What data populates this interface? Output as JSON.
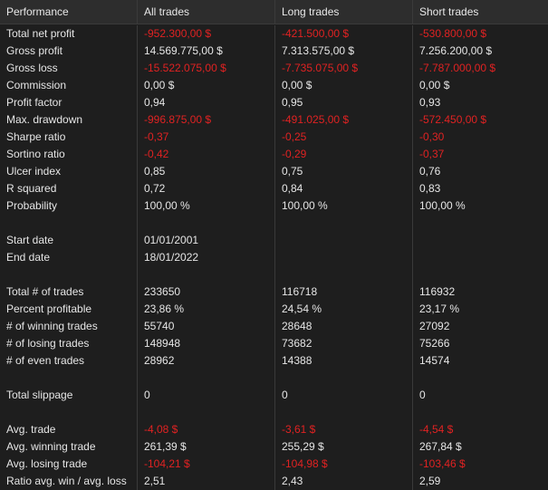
{
  "columns": [
    "Performance",
    "All trades",
    "Long trades",
    "Short trades"
  ],
  "colors": {
    "negative": "#e02222",
    "text": "#e6e6e6",
    "background": "#1e1e1e",
    "header_background": "#2d2d2d"
  },
  "rows": [
    {
      "label": "Total net profit",
      "values": [
        "-952.300,00 $",
        "-421.500,00 $",
        "-530.800,00 $"
      ],
      "neg": [
        true,
        true,
        true
      ]
    },
    {
      "label": "Gross profit",
      "values": [
        "14.569.775,00 $",
        "7.313.575,00 $",
        "7.256.200,00 $"
      ],
      "neg": [
        false,
        false,
        false
      ]
    },
    {
      "label": "Gross loss",
      "values": [
        "-15.522.075,00 $",
        "-7.735.075,00 $",
        "-7.787.000,00 $"
      ],
      "neg": [
        true,
        true,
        true
      ]
    },
    {
      "label": "Commission",
      "values": [
        "0,00 $",
        "0,00 $",
        "0,00 $"
      ],
      "neg": [
        false,
        false,
        false
      ]
    },
    {
      "label": "Profit factor",
      "values": [
        "0,94",
        "0,95",
        "0,93"
      ],
      "neg": [
        false,
        false,
        false
      ]
    },
    {
      "label": "Max. drawdown",
      "values": [
        "-996.875,00 $",
        "-491.025,00 $",
        "-572.450,00 $"
      ],
      "neg": [
        true,
        true,
        true
      ]
    },
    {
      "label": "Sharpe ratio",
      "values": [
        "-0,37",
        "-0,25",
        "-0,30"
      ],
      "neg": [
        true,
        true,
        true
      ]
    },
    {
      "label": "Sortino ratio",
      "values": [
        "-0,42",
        "-0,29",
        "-0,37"
      ],
      "neg": [
        true,
        true,
        true
      ]
    },
    {
      "label": "Ulcer index",
      "values": [
        "0,85",
        "0,75",
        "0,76"
      ],
      "neg": [
        false,
        false,
        false
      ]
    },
    {
      "label": "R squared",
      "values": [
        "0,72",
        "0,84",
        "0,83"
      ],
      "neg": [
        false,
        false,
        false
      ]
    },
    {
      "label": "Probability",
      "values": [
        "100,00 %",
        "100,00 %",
        "100,00 %"
      ],
      "neg": [
        false,
        false,
        false
      ]
    },
    {
      "label": "",
      "values": [
        "",
        "",
        ""
      ],
      "neg": [
        false,
        false,
        false
      ]
    },
    {
      "label": "Start date",
      "values": [
        "01/01/2001",
        "",
        ""
      ],
      "neg": [
        false,
        false,
        false
      ]
    },
    {
      "label": "End date",
      "values": [
        "18/01/2022",
        "",
        ""
      ],
      "neg": [
        false,
        false,
        false
      ]
    },
    {
      "label": "",
      "values": [
        "",
        "",
        ""
      ],
      "neg": [
        false,
        false,
        false
      ]
    },
    {
      "label": "Total # of trades",
      "values": [
        "233650",
        "116718",
        "116932"
      ],
      "neg": [
        false,
        false,
        false
      ]
    },
    {
      "label": "Percent profitable",
      "values": [
        "23,86 %",
        "24,54 %",
        "23,17 %"
      ],
      "neg": [
        false,
        false,
        false
      ]
    },
    {
      "label": "# of winning trades",
      "values": [
        "55740",
        "28648",
        "27092"
      ],
      "neg": [
        false,
        false,
        false
      ]
    },
    {
      "label": "# of losing trades",
      "values": [
        "148948",
        "73682",
        "75266"
      ],
      "neg": [
        false,
        false,
        false
      ]
    },
    {
      "label": "# of even trades",
      "values": [
        "28962",
        "14388",
        "14574"
      ],
      "neg": [
        false,
        false,
        false
      ]
    },
    {
      "label": "",
      "values": [
        "",
        "",
        ""
      ],
      "neg": [
        false,
        false,
        false
      ]
    },
    {
      "label": "Total slippage",
      "values": [
        "0",
        "0",
        "0"
      ],
      "neg": [
        false,
        false,
        false
      ]
    },
    {
      "label": "",
      "values": [
        "",
        "",
        ""
      ],
      "neg": [
        false,
        false,
        false
      ]
    },
    {
      "label": "Avg. trade",
      "values": [
        "-4,08 $",
        "-3,61 $",
        "-4,54 $"
      ],
      "neg": [
        true,
        true,
        true
      ]
    },
    {
      "label": "Avg. winning trade",
      "values": [
        "261,39 $",
        "255,29 $",
        "267,84 $"
      ],
      "neg": [
        false,
        false,
        false
      ]
    },
    {
      "label": "Avg. losing trade",
      "values": [
        "-104,21 $",
        "-104,98 $",
        "-103,46 $"
      ],
      "neg": [
        true,
        true,
        true
      ]
    },
    {
      "label": "Ratio avg. win / avg. loss",
      "values": [
        "2,51",
        "2,43",
        "2,59"
      ],
      "neg": [
        false,
        false,
        false
      ]
    }
  ]
}
